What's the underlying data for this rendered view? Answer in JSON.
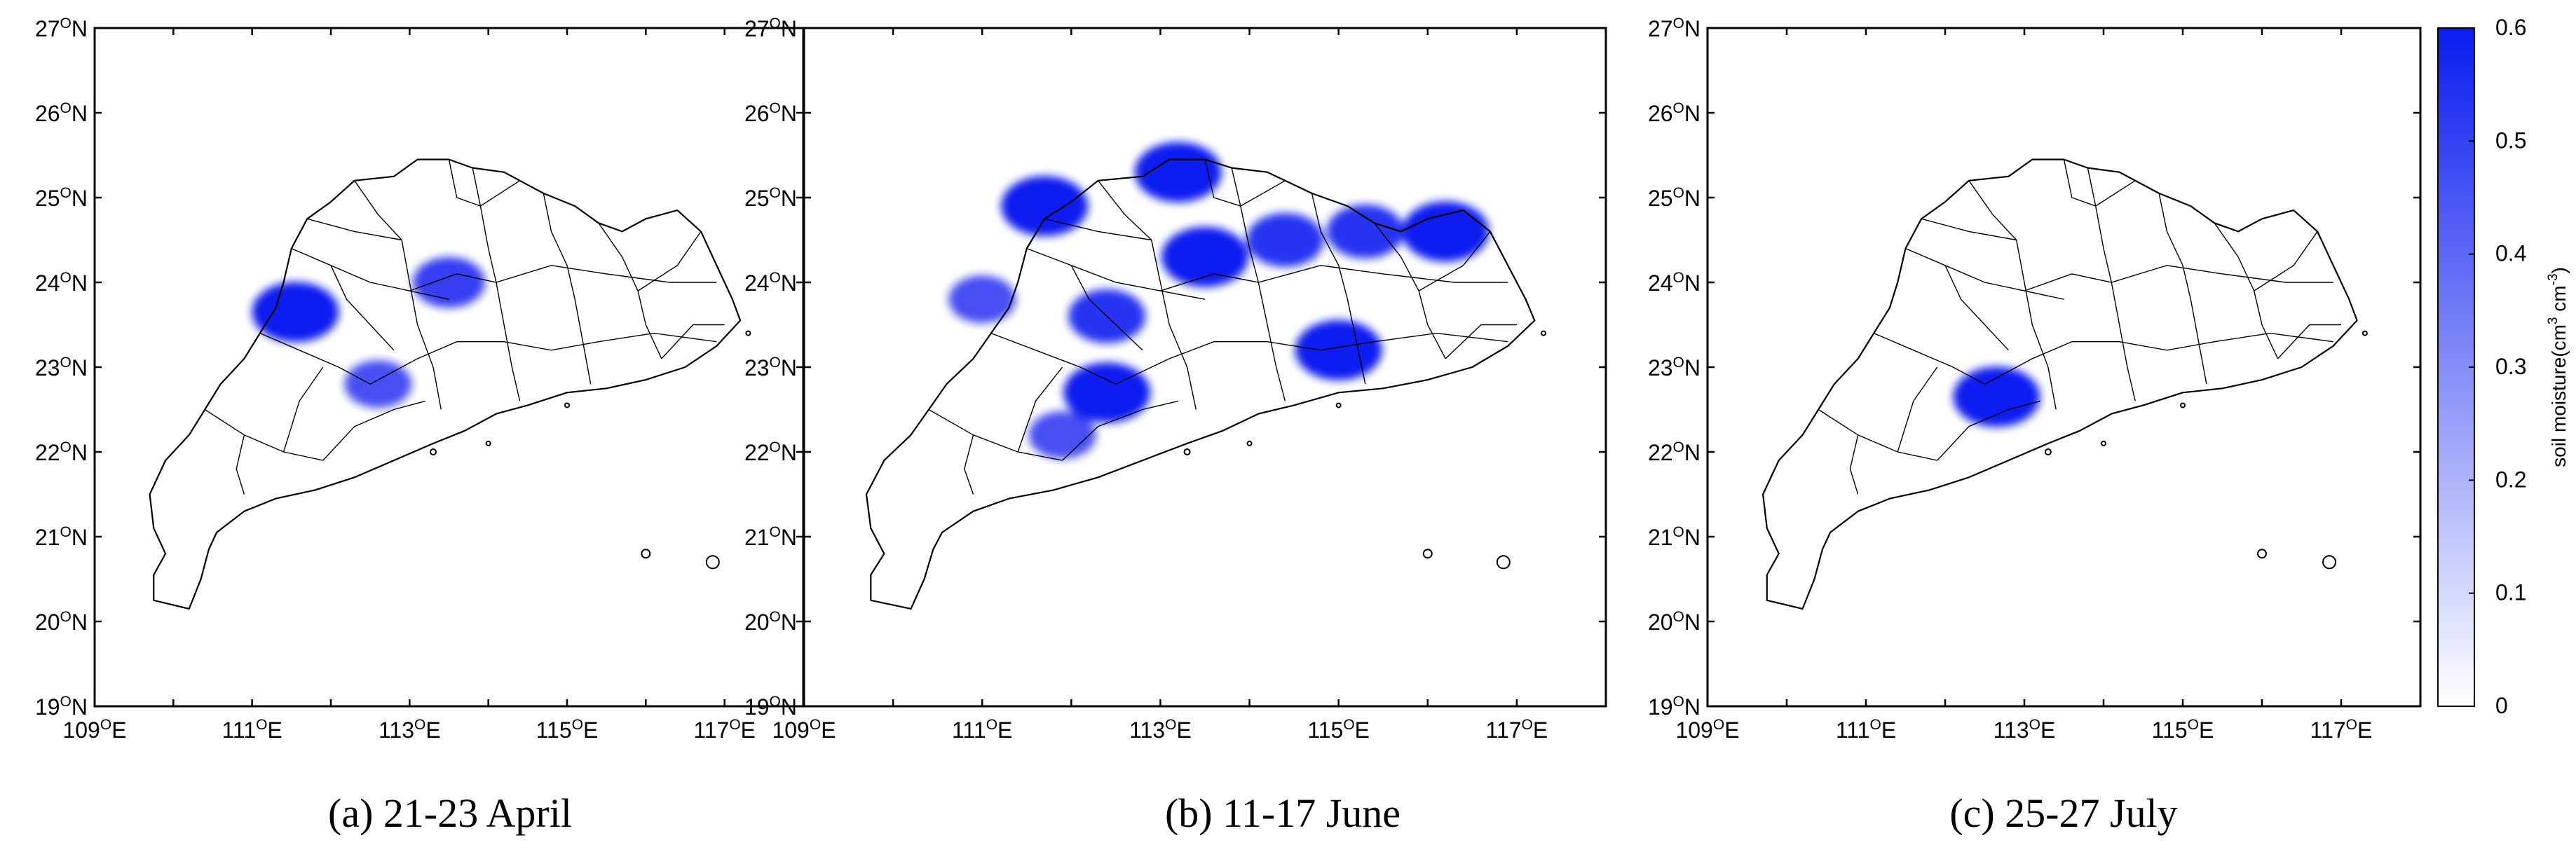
{
  "chart_data": [
    {
      "type": "heatmap",
      "title": "(a) 21-23 April",
      "xlim": [
        109,
        118
      ],
      "ylim": [
        19,
        27
      ],
      "xticks": [
        109,
        111,
        113,
        115,
        117
      ],
      "yticks": [
        19,
        20,
        21,
        22,
        23,
        24,
        25,
        26,
        27
      ],
      "colorbar": {
        "label": "soil moisture(cm^3 cm^-3)",
        "range": [
          0,
          0.6
        ]
      },
      "patches": [
        {
          "lon": 111.55,
          "lat": 23.65,
          "value": 0.6
        },
        {
          "lon": 113.5,
          "lat": 24.0,
          "value": 0.45
        },
        {
          "lon": 112.6,
          "lat": 22.8,
          "value": 0.4
        }
      ]
    },
    {
      "type": "heatmap",
      "title": "(b) 11-17 June",
      "xlim": [
        109,
        118
      ],
      "ylim": [
        19,
        27
      ],
      "xticks": [
        109,
        111,
        113,
        115,
        117
      ],
      "yticks": [
        19,
        20,
        21,
        22,
        23,
        24,
        25,
        26,
        27
      ],
      "colorbar": {
        "label": "soil moisture(cm^3 cm^-3)",
        "range": [
          0,
          0.6
        ]
      },
      "patches": [
        {
          "lon": 111.7,
          "lat": 24.9,
          "value": 0.6
        },
        {
          "lon": 113.2,
          "lat": 25.3,
          "value": 0.6
        },
        {
          "lon": 113.5,
          "lat": 24.3,
          "value": 0.6
        },
        {
          "lon": 115.0,
          "lat": 23.2,
          "value": 0.6
        },
        {
          "lon": 116.2,
          "lat": 24.6,
          "value": 0.6
        },
        {
          "lon": 112.4,
          "lat": 22.7,
          "value": 0.6
        },
        {
          "lon": 112.4,
          "lat": 23.6,
          "value": 0.5
        },
        {
          "lon": 111.0,
          "lat": 23.8,
          "value": 0.4
        },
        {
          "lon": 111.9,
          "lat": 22.2,
          "value": 0.4
        },
        {
          "lon": 114.4,
          "lat": 24.5,
          "value": 0.5
        },
        {
          "lon": 115.3,
          "lat": 24.6,
          "value": 0.5
        }
      ]
    },
    {
      "type": "heatmap",
      "title": "(c) 25-27 July",
      "xlim": [
        109,
        118
      ],
      "ylim": [
        19,
        27
      ],
      "xticks": [
        109,
        111,
        113,
        115,
        117
      ],
      "yticks": [
        19,
        20,
        21,
        22,
        23,
        24,
        25,
        26,
        27
      ],
      "colorbar": {
        "label": "soil moisture(cm^3 cm^-3)",
        "range": [
          0,
          0.6
        ]
      },
      "patches": [
        {
          "lon": 112.65,
          "lat": 22.65,
          "value": 0.6
        }
      ]
    }
  ],
  "colorbar": {
    "label_main": "soil moisture(cm",
    "sup1": "3",
    "mid": " cm",
    "sup2": "-3",
    "end": ")",
    "ticks": [
      0,
      0.1,
      0.2,
      0.3,
      0.4,
      0.5,
      0.6
    ],
    "color_low": "#ffffff",
    "color_high": "#0a1cf0"
  },
  "colors": {
    "moisture": "#1a2bf0",
    "boundary": "#000000"
  }
}
